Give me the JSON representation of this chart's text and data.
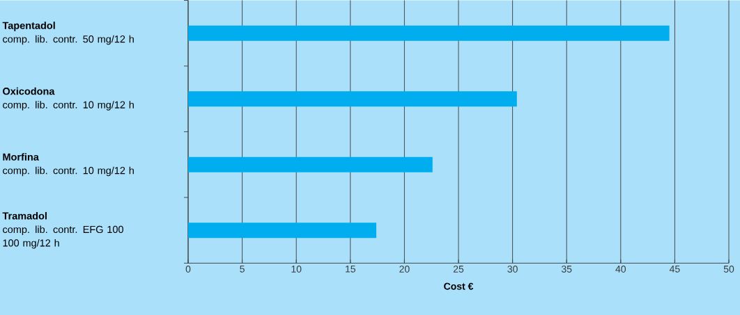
{
  "chart_data": {
    "type": "bar",
    "orientation": "horizontal",
    "xlabel": "**Cost €**",
    "categories": [
      "**Tapentadol**\ncomp. lib. contr. 50 mg/12 h",
      "**Oxicodona**\ncomp. lib. contr. 10 mg/12 h",
      "**Morfina**\ncomp. lib. contr. 10 mg/12 h",
      "**Tramadol**\ncomp. lib. contr. EFG 100\n100 mg/12 h"
    ],
    "values": [
      44.5,
      30.4,
      22.6,
      17.4
    ],
    "color": "#00aeef",
    "xlim": [
      0,
      50
    ],
    "xticks": [
      0,
      5,
      10,
      15,
      20,
      25,
      30,
      35,
      40,
      45,
      50
    ],
    "grid": "x"
  }
}
